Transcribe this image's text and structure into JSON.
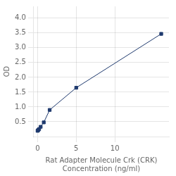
{
  "chart_data": {
    "type": "line",
    "xlabel": "Rat Adapter Molecule Crk (CRK)\nConcentration (ng/ml)",
    "ylabel": "OD",
    "x": [
      0.0,
      0.05,
      0.1,
      0.2,
      0.4,
      0.8,
      1.563,
      5.0,
      16.0
    ],
    "values": [
      0.195,
      0.21,
      0.225,
      0.255,
      0.33,
      0.48,
      0.9,
      1.65,
      3.47
    ],
    "color": "#1f3a6e",
    "marker": "square",
    "xlim": [
      -0.5,
      17
    ],
    "ylim": [
      0,
      4.4
    ],
    "xticks": [
      0,
      5,
      10
    ],
    "yticks": [
      0.5,
      {
        "value": 1.0,
        "label": "1.0"
      },
      1.5,
      {
        "value": 2.0,
        "label": "2.0"
      },
      2.5,
      {
        "value": 3.0,
        "label": "3.0"
      },
      3.5,
      {
        "value": 4.0,
        "label": "4.0"
      }
    ],
    "grid": true
  }
}
